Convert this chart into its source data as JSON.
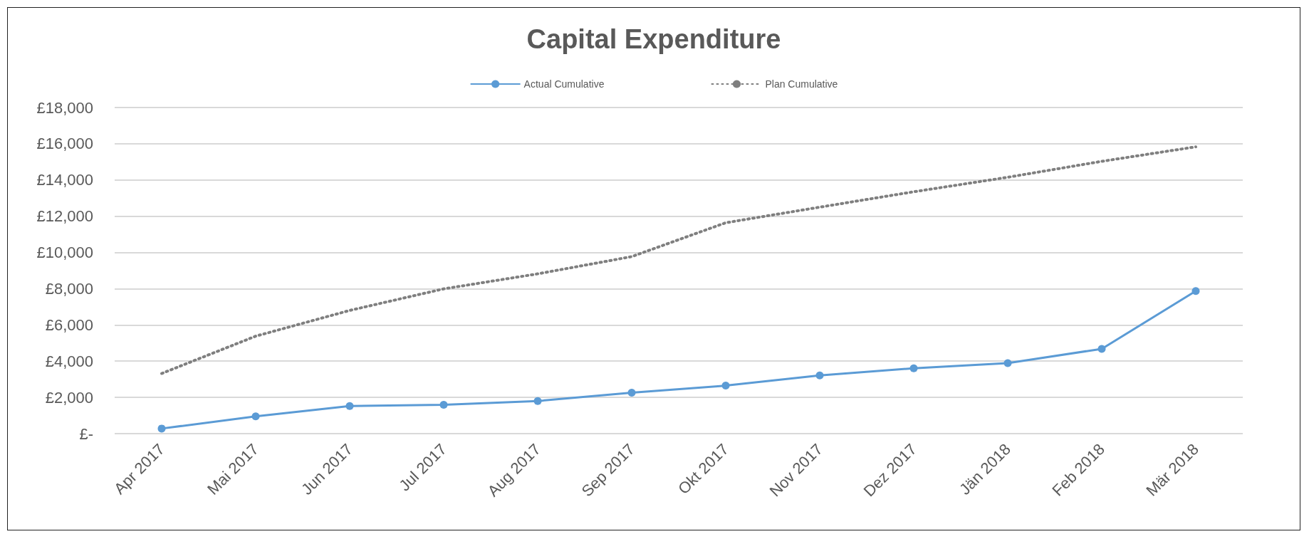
{
  "chart_data": {
    "type": "line",
    "title": "Capital Expenditure",
    "categories": [
      "Apr 2017",
      "Mai 2017",
      "Jun 2017",
      "Jul 2017",
      "Aug 2017",
      "Sep 2017",
      "Okt 2017",
      "Nov 2017",
      "Dez 2017",
      "Jän 2018",
      "Feb 2018",
      "Mär 2018"
    ],
    "series": [
      {
        "name": "Actual Cumulative",
        "color": "#5b9bd5",
        "marker": "circle",
        "line_style": "solid",
        "values": [
          280,
          950,
          1520,
          1590,
          1800,
          2260,
          2650,
          3210,
          3610,
          3890,
          4680,
          7870
        ]
      },
      {
        "name": "Plan Cumulative",
        "color": "#7f7f7f",
        "marker": "none",
        "line_style": "dotted",
        "values": [
          3320,
          5380,
          6800,
          7990,
          8820,
          9770,
          11640,
          12500,
          13350,
          14150,
          15030,
          15830
        ]
      }
    ],
    "ylim": [
      0,
      18000
    ],
    "yticks": [
      {
        "value": 0,
        "label": "£-"
      },
      {
        "value": 2000,
        "label": "£2,000"
      },
      {
        "value": 4000,
        "label": "£4,000"
      },
      {
        "value": 6000,
        "label": "£6,000"
      },
      {
        "value": 8000,
        "label": "£8,000"
      },
      {
        "value": 10000,
        "label": "£10,000"
      },
      {
        "value": 12000,
        "label": "£12,000"
      },
      {
        "value": 14000,
        "label": "£14,000"
      },
      {
        "value": 16000,
        "label": "£16,000"
      },
      {
        "value": 18000,
        "label": "£18,000"
      }
    ],
    "grid": "y",
    "legend": "top"
  }
}
